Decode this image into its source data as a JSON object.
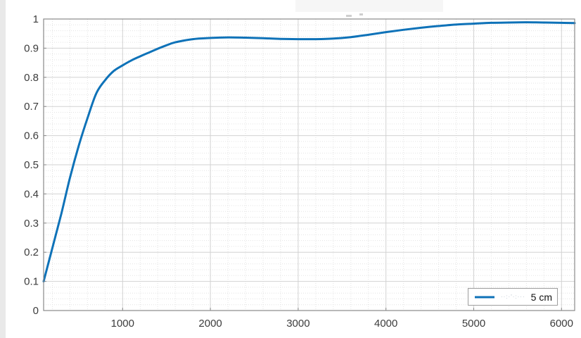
{
  "chart_data": {
    "type": "line",
    "title": "",
    "xlabel": "",
    "ylabel": "",
    "xlim": [
      100,
      6150
    ],
    "ylim": [
      0,
      1
    ],
    "x_ticks": [
      1000,
      2000,
      3000,
      4000,
      5000,
      6000
    ],
    "x_tick_labels": [
      "1000",
      "2000",
      "3000",
      "4000",
      "5000",
      "6000"
    ],
    "y_ticks": [
      0,
      0.1,
      0.2,
      0.3,
      0.4,
      0.5,
      0.6,
      0.7,
      0.8,
      0.9,
      1
    ],
    "y_tick_labels": [
      "0",
      "0.1",
      "0.2",
      "0.3",
      "0.4",
      "0.5",
      "0.6",
      "0.7",
      "0.8",
      "0.9",
      "1"
    ],
    "x_minor_step": 200,
    "y_minor_step": 0.02,
    "grid": "major and minor gridlines on",
    "legend_position": "bottom-right",
    "series": [
      {
        "name": "5 cm",
        "color": "#0e72b8",
        "x": [
          100,
          200,
          300,
          400,
          500,
          600,
          700,
          800,
          900,
          1000,
          1100,
          1200,
          1300,
          1400,
          1500,
          1600,
          1800,
          2000,
          2200,
          2400,
          2600,
          2800,
          3000,
          3200,
          3400,
          3600,
          3800,
          4000,
          4200,
          4400,
          4600,
          4800,
          5000,
          5200,
          5400,
          5600,
          5800,
          6000,
          6150
        ],
        "y": [
          0.1,
          0.215,
          0.33,
          0.455,
          0.565,
          0.66,
          0.745,
          0.79,
          0.822,
          0.841,
          0.858,
          0.872,
          0.885,
          0.898,
          0.91,
          0.92,
          0.931,
          0.935,
          0.937,
          0.936,
          0.934,
          0.932,
          0.931,
          0.931,
          0.933,
          0.938,
          0.946,
          0.955,
          0.963,
          0.97,
          0.976,
          0.981,
          0.984,
          0.987,
          0.988,
          0.989,
          0.988,
          0.987,
          0.986
        ]
      }
    ]
  },
  "legend": {
    "illegible_prefix": "··:·'·:···",
    "label": "5 cm"
  },
  "colors": {
    "line": "#0e72b8",
    "major_grid": "#d2d2d2",
    "minor_grid": "#e3e3e3",
    "axis_border": "#8a8a8a",
    "tick_label": "#3c3c3c",
    "legend_border": "#9d9d9d"
  }
}
